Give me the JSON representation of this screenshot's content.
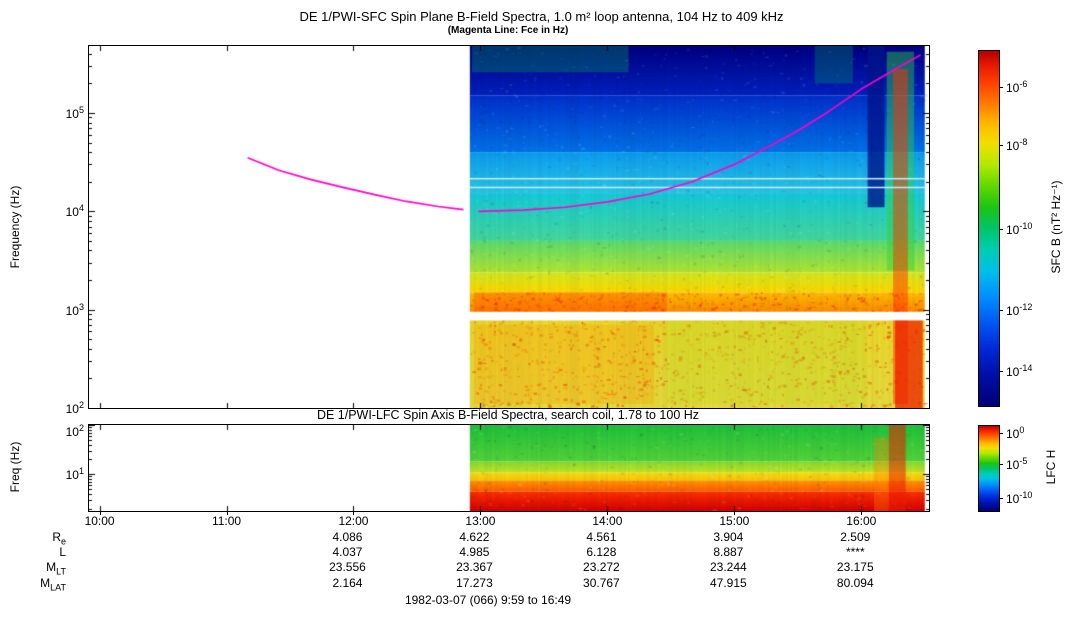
{
  "footer": {
    "date_range": "1982-03-07 (066) 9:59 to 16:49"
  },
  "time_axis": {
    "range_minutes": [
      595,
      992
    ],
    "ticks": [
      {
        "minutes": 600,
        "label": "10:00"
      },
      {
        "minutes": 660,
        "label": "11:00"
      },
      {
        "minutes": 720,
        "label": "12:00"
      },
      {
        "minutes": 780,
        "label": "13:00"
      },
      {
        "minutes": 840,
        "label": "14:00"
      },
      {
        "minutes": 900,
        "label": "15:00"
      },
      {
        "minutes": 960,
        "label": "16:00"
      }
    ]
  },
  "orbit_rows": {
    "column_minutes": [
      720,
      780,
      840,
      900,
      960
    ],
    "rows": [
      {
        "label": "R",
        "sub": "e",
        "values": [
          "4.086",
          "4.622",
          "4.561",
          "3.904",
          "2.509"
        ]
      },
      {
        "label": "L",
        "sub": "",
        "values": [
          "4.037",
          "4.985",
          "6.128",
          "8.887",
          "****"
        ]
      },
      {
        "label": "M",
        "sub": "LT",
        "values": [
          "23.556",
          "23.367",
          "23.272",
          "23.244",
          "23.175"
        ]
      },
      {
        "label": "M",
        "sub": "LAT",
        "values": [
          "2.164",
          "17.273",
          "30.767",
          "47.915",
          "80.094"
        ]
      }
    ]
  },
  "chart_data": [
    {
      "type": "heatmap",
      "id": "sfc",
      "title": "DE 1/PWI-SFC  Spin Plane B-Field Spectra, 1.0 m² loop antenna, 104 Hz to 409 kHz",
      "subtitle": "(Magenta Line: Fce in Hz)",
      "ylabel": "Frequency (Hz)",
      "ylim_hz": [
        100,
        480000
      ],
      "yticks": [
        {
          "hz": 100,
          "exp": "2"
        },
        {
          "hz": 1000,
          "exp": "3"
        },
        {
          "hz": 10000,
          "exp": "4"
        },
        {
          "hz": 100000,
          "exp": "5"
        }
      ],
      "time_range_minutes": [
        595,
        992
      ],
      "data_window_minutes": [
        775,
        990
      ],
      "gap_hz": [
        780,
        950
      ],
      "thin_lines_hz": [
        21500,
        17500
      ],
      "seed": 11,
      "bands": [
        {
          "f_top": 480000,
          "f_bot": 150000,
          "top": "#000082",
          "bot": "#0022c0",
          "noise": 0.12
        },
        {
          "f_top": 150000,
          "f_bot": 40000,
          "top": "#0030cc",
          "bot": "#0074e8",
          "noise": 0.1
        },
        {
          "f_top": 40000,
          "f_bot": 15000,
          "top": "#0b9cf0",
          "bot": "#2cc8e4",
          "noise": 0.1
        },
        {
          "f_top": 15000,
          "f_bot": 5000,
          "top": "#14ccd8",
          "bot": "#46d89a",
          "noise": 0.1
        },
        {
          "f_top": 5000,
          "f_bot": 2400,
          "top": "#5cdc6e",
          "bot": "#b2e632",
          "noise": 0.14
        },
        {
          "f_top": 2400,
          "f_bot": 1500,
          "top": "#d2ea22",
          "bot": "#ffd800",
          "noise": 0.2
        },
        {
          "f_top": 1500,
          "f_bot": 950,
          "top": "#ffc000",
          "bot": "#ff8c00",
          "noise": 0.5,
          "hot": true
        },
        {
          "f_top": 780,
          "f_bot": 100,
          "top": "#ecd82a",
          "bot": "#e6dc3c",
          "noise": 0.25,
          "hot": true
        }
      ],
      "features": [
        {
          "t0": 776,
          "t1": 850,
          "f_top": 480000,
          "f_bot": 260000,
          "color": "#00b44a",
          "alpha": 0.3
        },
        {
          "t0": 938,
          "t1": 956,
          "f_top": 480000,
          "f_bot": 200000,
          "color": "#00b44a",
          "alpha": 0.28
        },
        {
          "t0": 777,
          "t1": 868,
          "f_top": 1500,
          "f_bot": 950,
          "color": "#ff3c00",
          "alpha": 0.3
        },
        {
          "t0": 777,
          "t1": 862,
          "f_top": 700,
          "f_bot": 110,
          "color": "#ff9000",
          "alpha": 0.25
        },
        {
          "t0": 868,
          "t1": 962,
          "f_top": 780,
          "f_bot": 110,
          "color": "#b8dc28",
          "alpha": 0.3
        },
        {
          "t0": 963,
          "t1": 971,
          "f_top": 480000,
          "f_bot": 11000,
          "color": "#001488",
          "alpha": 0.8
        },
        {
          "t0": 972,
          "t1": 985,
          "f_top": 420000,
          "f_bot": 2500,
          "color": "#2cd23c",
          "alpha": 0.45
        },
        {
          "t0": 975,
          "t1": 982,
          "f_top": 280000,
          "f_bot": 110,
          "color": "#ff3000",
          "alpha": 0.5
        },
        {
          "t0": 976,
          "t1": 989,
          "f_top": 780,
          "f_bot": 100,
          "color": "#ee2000",
          "alpha": 0.75
        }
      ],
      "fce_color": "#ff00cc",
      "fce_segments": [
        [
          [
            670,
            35000
          ],
          [
            685,
            26000
          ],
          [
            700,
            21000
          ],
          [
            715,
            17500
          ],
          [
            730,
            14800
          ],
          [
            745,
            12600
          ],
          [
            760,
            11200
          ],
          [
            772,
            10400
          ]
        ],
        [
          [
            779,
            10000
          ],
          [
            800,
            10300
          ],
          [
            820,
            11000
          ],
          [
            840,
            12500
          ],
          [
            860,
            15000
          ],
          [
            880,
            20000
          ],
          [
            900,
            30000
          ],
          [
            915,
            44000
          ],
          [
            930,
            66000
          ],
          [
            945,
            105000
          ],
          [
            960,
            175000
          ],
          [
            975,
            270000
          ],
          [
            988,
            390000
          ]
        ]
      ],
      "colorbar": {
        "label": "SFC B (nT² Hz⁻¹)",
        "ticks": [
          {
            "exp": "-6",
            "frac": 0.1
          },
          {
            "exp": "-8",
            "frac": 0.265
          },
          {
            "exp": "-10",
            "frac": 0.5
          },
          {
            "exp": "-12",
            "frac": 0.73
          },
          {
            "exp": "-14",
            "frac": 0.9
          }
        ]
      }
    },
    {
      "type": "heatmap",
      "id": "lfc",
      "title": "DE 1/PWI-LFC  Spin Axis B-Field Spectra, search coil, 1.78 to 100 Hz",
      "ylabel": "Freq (Hz)",
      "ylim_hz": [
        1.78,
        100
      ],
      "yticks": [
        {
          "hz": 10,
          "exp": "1"
        },
        {
          "hz": 100,
          "exp": "2"
        }
      ],
      "time_range_minutes": [
        595,
        992
      ],
      "data_window_minutes": [
        775,
        990
      ],
      "seed": 29,
      "bands": [
        {
          "f_top": 100,
          "f_bot": 18,
          "top": "#1ec23c",
          "bot": "#55d438",
          "noise": 0.12
        },
        {
          "f_top": 18,
          "f_bot": 11,
          "top": "#84dc30",
          "bot": "#c4e428",
          "noise": 0.12
        },
        {
          "f_top": 11,
          "f_bot": 7.5,
          "top": "#eee41e",
          "bot": "#ffc400",
          "noise": 0.15
        },
        {
          "f_top": 7.5,
          "f_bot": 4.4,
          "top": "#ff9c00",
          "bot": "#ff5a00",
          "noise": 0.15
        },
        {
          "f_top": 4.4,
          "f_bot": 1.78,
          "top": "#ff3200",
          "bot": "#d40000",
          "noise": 0.15
        }
      ],
      "features": [
        {
          "t0": 966,
          "t1": 973,
          "f_top": 55,
          "f_bot": 1.78,
          "color": "#ff7a00",
          "alpha": 0.35
        },
        {
          "t0": 973,
          "t1": 981,
          "f_top": 100,
          "f_bot": 1.78,
          "color": "#ee1c00",
          "alpha": 0.55
        }
      ],
      "colorbar": {
        "label": "LFC H",
        "ticks": [
          {
            "exp": "0",
            "frac": 0.08
          },
          {
            "exp": "-5",
            "frac": 0.45
          },
          {
            "exp": "-10",
            "frac": 0.85
          }
        ]
      }
    }
  ]
}
